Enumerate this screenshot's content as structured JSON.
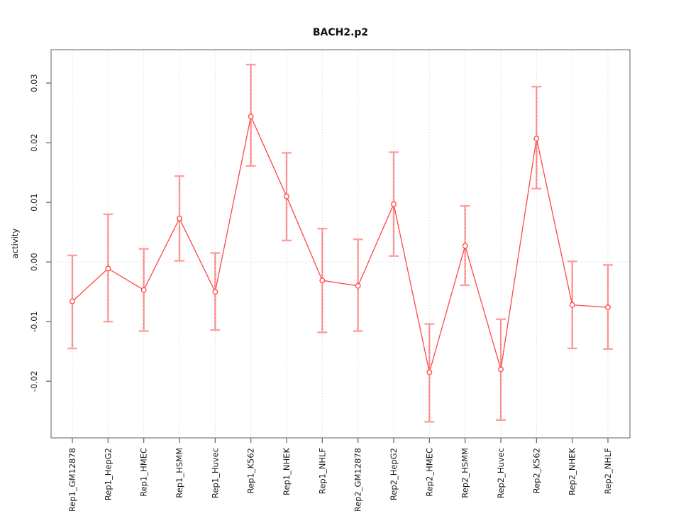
{
  "chart_data": {
    "type": "line",
    "title": "BACH2.p2",
    "ylabel": "activity",
    "xlabel": "",
    "legend": "none",
    "grid": "vertical dotted gridline at each category; dotted horizontal line at y=0",
    "ylim": [
      -0.0295,
      0.0356
    ],
    "yticks": [
      0.03,
      0.02,
      0.01,
      0.0,
      -0.01,
      -0.02
    ],
    "ytick_labels": [
      "0.03",
      "0.02",
      "0.01",
      "0.00",
      "-0.01",
      "-0.02"
    ],
    "categories": [
      "Rep1_GM12878",
      "Rep1_HepG2",
      "Rep1_HMEC",
      "Rep1_HSMM",
      "Rep1_Huvec",
      "Rep1_K562",
      "Rep1_NHEK",
      "Rep1_NHLF",
      "Rep2_GM12878",
      "Rep2_HepG2",
      "Rep2_HMEC",
      "Rep2_HSMM",
      "Rep2_Huvec",
      "Rep2_K562",
      "Rep2_NHEK",
      "Rep2_NHLF"
    ],
    "series": [
      {
        "name": "activity",
        "marker": "open-circle",
        "values": [
          -0.0066,
          -0.0011,
          -0.0047,
          0.0073,
          -0.005,
          0.0244,
          0.011,
          -0.0031,
          -0.004,
          0.0097,
          -0.0185,
          0.0027,
          -0.018,
          0.0207,
          -0.0072,
          -0.0076
        ],
        "upper": [
          0.0011,
          0.008,
          0.0022,
          0.0144,
          0.0015,
          0.0331,
          0.0183,
          0.0056,
          0.0038,
          0.0184,
          -0.0104,
          0.0094,
          -0.0096,
          0.0294,
          0.0001,
          -0.0005
        ],
        "lower": [
          -0.0145,
          -0.01,
          -0.0116,
          0.0002,
          -0.0114,
          0.0161,
          0.0036,
          -0.0118,
          -0.0116,
          0.001,
          -0.0268,
          -0.0039,
          -0.0265,
          0.0123,
          -0.0145,
          -0.0146
        ]
      }
    ],
    "colors": {
      "background": "#ffffff",
      "line": "#ff4545",
      "marker": "#ff4545",
      "error_bar": "#ffa0a0",
      "error_bar_dash": "#ef7070",
      "grid": "#dcdcdc",
      "axis_box": "#848484",
      "tick": "#5f5f5f",
      "text": "#1a1a1a"
    }
  }
}
